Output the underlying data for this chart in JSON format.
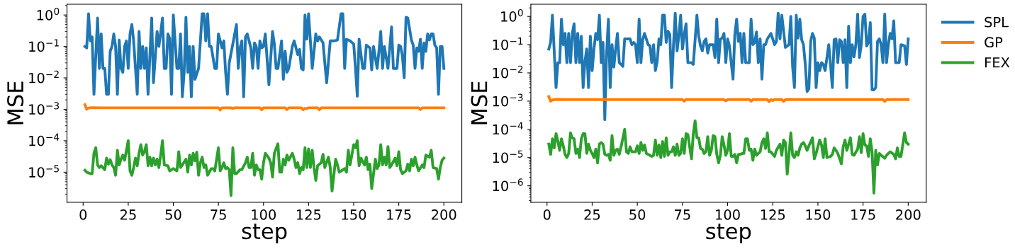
{
  "chart_data": [
    {
      "type": "line",
      "xlabel": "step",
      "ylabel": "MSE",
      "log": "y",
      "xlim": [
        -8.95,
        209.95
      ],
      "xticks": [
        0,
        25,
        50,
        75,
        100,
        125,
        150,
        175,
        200
      ],
      "ylim": [
        1.1e-06,
        2.2
      ],
      "yticks": [
        {
          "value": 1,
          "label": "10$^{0}$"
        },
        {
          "value": 0.1,
          "label": "10$^{−1}$"
        },
        {
          "value": 0.01,
          "label": "10$^{−2}$"
        },
        {
          "value": 0.001,
          "label": "10$^{−3}$"
        },
        {
          "value": 0.0001,
          "label": "10$^{−4}$"
        },
        {
          "value": 1e-05,
          "label": "10$^{−5}$"
        }
      ],
      "grid": false,
      "legend": false,
      "line_style": "solid",
      "marker": "none",
      "series": [
        {
          "color": "#1f77b4",
          "x": [
            1,
            2,
            3,
            4,
            5,
            6,
            8,
            9,
            10,
            11,
            12,
            13,
            14,
            15,
            16,
            17,
            18,
            19,
            20,
            21,
            22,
            23,
            24,
            25,
            26,
            27,
            28,
            30,
            31,
            32,
            33,
            34,
            35,
            36,
            38,
            39,
            41,
            42,
            44,
            45,
            46,
            47,
            48,
            49,
            50,
            52,
            53,
            54,
            55,
            56,
            57,
            58,
            59,
            60,
            61,
            62,
            64,
            66,
            67,
            68,
            69,
            70,
            71,
            73,
            74,
            75,
            76,
            77,
            78,
            79,
            80,
            81,
            83,
            85,
            86,
            87,
            88,
            89,
            90,
            91,
            93,
            94,
            95,
            96,
            97,
            98,
            99,
            100,
            101,
            103,
            105,
            106,
            107,
            108,
            110,
            111,
            112,
            113,
            114,
            116,
            117,
            119,
            120,
            121,
            122,
            123,
            124,
            125,
            127,
            129,
            130,
            131,
            133,
            135,
            137,
            139,
            141,
            143,
            144,
            145,
            146,
            148,
            150,
            151,
            152,
            153,
            155,
            156,
            157,
            159,
            160,
            161,
            163,
            164,
            165,
            166,
            167,
            169,
            171,
            172,
            174,
            175,
            176,
            177,
            178,
            179,
            180,
            182,
            183,
            184,
            185,
            186,
            187,
            188,
            189,
            190,
            191,
            192,
            193,
            194,
            195,
            196,
            197,
            198,
            199,
            200
          ],
          "values": [
            0.1,
            0.09,
            1.1,
            0.15,
            0.2,
            0.003,
            0.8,
            0.02,
            0.25,
            0.02,
            0.02,
            0.003,
            0.003,
            0.07,
            0.1,
            0.25,
            0.1,
            0.003,
            0.16,
            0.02,
            0.015,
            0.1,
            0.15,
            0.02,
            0.25,
            0.5,
            0.15,
            0.003,
            0.3,
            0.02,
            0.1,
            0.02,
            0.09,
            0.003,
            0.8,
            0.007,
            0.3,
            0.1,
            0.8,
            0.02,
            0.02,
            0.25,
            0.18,
            0.003,
            1.0,
            0.02,
            0.02,
            0.25,
            0.0025,
            0.015,
            0.85,
            0.015,
            0.1,
            0.0025,
            0.1,
            0.009,
            0.02,
            1.1,
            1.1,
            0.15,
            1.1,
            0.1,
            0.1,
            0.02,
            0.02,
            0.25,
            0.15,
            0.09,
            0.15,
            0.015,
            0.003,
            0.03,
            0.12,
            0.5,
            0.02,
            0.09,
            0.15,
            0.0025,
            0.2,
            0.25,
            0.09,
            0.02,
            0.13,
            0.1,
            0.02,
            0.15,
            0.09,
            0.1,
            0.25,
            0.006,
            0.3,
            0.12,
            0.02,
            0.02,
            0.15,
            0.009,
            0.07,
            0.015,
            0.02,
            0.1,
            0.15,
            0.055,
            0.08,
            0.02,
            0.018,
            1.0,
            0.17,
            1.1,
            0.02,
            0.25,
            0.15,
            0.2,
            0.13,
            0.007,
            0.15,
            0.15,
            0.16,
            1.1,
            1.1,
            0.02,
            0.17,
            0.15,
            0.12,
            0.02,
            0.0026,
            0.17,
            0.02,
            0.02,
            0.11,
            0.09,
            0.018,
            0.1,
            0.02,
            0.07,
            0.3,
            0.02,
            0.1,
            0.02,
            0.42,
            0.02,
            0.02,
            0.11,
            0.1,
            0.05,
            0.01,
            0.85,
            0.8,
            0.16,
            0.11,
            0.02,
            0.09,
            0.07,
            0.17,
            0.02,
            0.13,
            0.07,
            0.25,
            0.16,
            0.25,
            0.25,
            0.11,
            0.09,
            0.003,
            0.1,
            0.1,
            0.02
          ]
        },
        {
          "color": "#ff7f0e",
          "x": [
            1,
            2,
            3,
            5,
            10,
            75,
            76,
            77,
            82,
            83,
            84,
            98,
            99,
            100,
            112,
            113,
            114,
            121,
            122,
            123,
            124,
            125,
            130,
            131,
            132,
            186,
            187,
            188,
            200
          ],
          "values": [
            0.0014,
            0.001,
            0.0011,
            0.00113,
            0.00112,
            0.00112,
            0.00095,
            0.00112,
            0.00112,
            0.00106,
            0.00112,
            0.00112,
            0.00097,
            0.00112,
            0.00112,
            0.00098,
            0.00112,
            0.00112,
            0.00097,
            0.00108,
            0.00105,
            0.00112,
            0.00112,
            0.00097,
            0.00112,
            0.00112,
            0.00098,
            0.00112,
            0.00112
          ]
        },
        {
          "color": "#2ca02c",
          "x": [
            1,
            2,
            4,
            5,
            6,
            7,
            8,
            9,
            10,
            12,
            13,
            14,
            15,
            16,
            17,
            18,
            19,
            20,
            21,
            22,
            23,
            25,
            26,
            27,
            28,
            29,
            30,
            31,
            32,
            33,
            34,
            35,
            36,
            37,
            38,
            39,
            40,
            41,
            42,
            43,
            44,
            45,
            47,
            48,
            50,
            52,
            53,
            54,
            55,
            57,
            58,
            59,
            60,
            61,
            62,
            63,
            64,
            65,
            66,
            67,
            68,
            69,
            71,
            72,
            73,
            75,
            76,
            77,
            78,
            79,
            80,
            81,
            82,
            83,
            84,
            85,
            87,
            88,
            90,
            91,
            92,
            93,
            94,
            95,
            96,
            97,
            98,
            99,
            100,
            101,
            103,
            104,
            105,
            106,
            108,
            109,
            110,
            111,
            112,
            113,
            114,
            116,
            117,
            118,
            119,
            120,
            121,
            122,
            123,
            124,
            125,
            126,
            127,
            128,
            129,
            130,
            132,
            133,
            134,
            136,
            137,
            138,
            140,
            141,
            142,
            145,
            146,
            147,
            148,
            150,
            151,
            152,
            153,
            154,
            156,
            157,
            158,
            159,
            160,
            162,
            163,
            164,
            165,
            166,
            167,
            168,
            169,
            170,
            171,
            173,
            174,
            175,
            176,
            177,
            179,
            180,
            181,
            182,
            183,
            184,
            185,
            186,
            188,
            189,
            190,
            192,
            193,
            194,
            196,
            197,
            198,
            199,
            200
          ],
          "values": [
            1.15e-05,
            1e-05,
            9e-06,
            9e-06,
            4e-05,
            6e-05,
            1.7e-05,
            1.4e-05,
            1.6e-05,
            1.2e-05,
            2.8e-05,
            1.8e-05,
            2.5e-05,
            1.7e-05,
            1.4e-05,
            8e-06,
            5e-05,
            1.7e-05,
            2.6e-05,
            3.5e-05,
            2.4e-05,
            0.0001,
            1.1e-05,
            8e-06,
            1.4e-05,
            2.8e-05,
            1.6e-05,
            4e-05,
            7.5e-05,
            3.5e-05,
            4.5e-05,
            7.5e-05,
            1.6e-05,
            3e-05,
            1.6e-05,
            2.8e-05,
            1.7e-05,
            2.6e-05,
            1.4e-05,
            3.5e-05,
            0.0001,
            1.7e-05,
            1.6e-05,
            1.1e-05,
            1.3e-05,
            1.1e-05,
            4.5e-05,
            1.4e-05,
            1.7e-05,
            2.6e-05,
            1e-05,
            3.5e-05,
            1.7e-05,
            4e-05,
            2.3e-05,
            4.3e-05,
            8e-06,
            2e-05,
            3e-05,
            1.4e-05,
            1.7e-05,
            8e-06,
            1.3e-05,
            1.3e-05,
            1.1e-05,
            6e-05,
            1.1e-05,
            1.4e-05,
            2e-05,
            1.3e-05,
            1.4e-05,
            1.2e-05,
            1.8e-06,
            6e-05,
            9e-06,
            9e-06,
            1.2e-05,
            1.2e-05,
            2e-05,
            3e-05,
            1.4e-05,
            1.4e-05,
            4e-05,
            8e-06,
            1.7e-05,
            1.2e-05,
            1.2e-05,
            6e-06,
            2e-05,
            4e-05,
            2.8e-05,
            2e-05,
            7e-06,
            4e-05,
            8e-05,
            1e-05,
            1e-05,
            2.6e-05,
            1.7e-05,
            3.5e-05,
            2.4e-05,
            4e-05,
            2.6e-05,
            1.4e-05,
            2e-05,
            9e-06,
            1.4e-05,
            1.2e-05,
            6e-05,
            1.4e-05,
            5.5e-05,
            1.4e-05,
            5e-05,
            1.4e-05,
            5.5e-06,
            1.6e-05,
            2e-05,
            3.7e-05,
            1.4e-05,
            3e-05,
            1.4e-05,
            2.5e-06,
            2.6e-05,
            1.7e-05,
            1e-05,
            1.3e-05,
            1e-05,
            5e-05,
            1.7e-05,
            7.5e-05,
            6e-05,
            0.0001,
            1.6e-05,
            2.8e-05,
            1.7e-05,
            3e-05,
            1.2e-05,
            1.8e-05,
            3e-06,
            2.6e-05,
            1.3e-05,
            1.7e-05,
            7.5e-05,
            1.7e-05,
            3e-05,
            1.7e-05,
            6.5e-05,
            1.4e-05,
            1.7e-05,
            2.8e-05,
            1.6e-05,
            4.5e-05,
            1.2e-05,
            9e-06,
            1.1e-05,
            1.8e-05,
            1.1e-05,
            2.6e-05,
            1.6e-05,
            3e-05,
            1.7e-05,
            1.1e-05,
            1.7e-05,
            1.4e-05,
            3.5e-05,
            3e-05,
            5e-05,
            1.4e-05,
            1.3e-05,
            6e-06,
            1.4e-05,
            2.4e-05,
            2.8e-05
          ]
        }
      ]
    },
    {
      "type": "line",
      "xlabel": "step",
      "ylabel": "MSE",
      "log": "y",
      "xlim": [
        -8.95,
        209.95
      ],
      "xticks": [
        0,
        25,
        50,
        75,
        100,
        125,
        150,
        175,
        200
      ],
      "ylim": [
        2.6e-07,
        2.7
      ],
      "yticks": [
        {
          "value": 1,
          "label": "10$^{0}$"
        },
        {
          "value": 0.1,
          "label": "10$^{−1}$"
        },
        {
          "value": 0.01,
          "label": "10$^{−2}$"
        },
        {
          "value": 0.001,
          "label": "10$^{−3}$"
        },
        {
          "value": 0.0001,
          "label": "10$^{−4}$"
        },
        {
          "value": 1e-05,
          "label": "10$^{−5}$"
        },
        {
          "value": 1e-06,
          "label": "10$^{−6}$"
        }
      ],
      "grid": false,
      "legend": "right",
      "line_style": "solid",
      "marker": "none",
      "series": [
        {
          "name": "SPL",
          "color": "#1f77b4",
          "x": [
            1,
            2,
            3,
            5,
            6,
            7,
            8,
            9,
            10,
            11,
            12,
            13,
            14,
            15,
            16,
            17,
            18,
            19,
            20,
            21,
            22,
            23,
            24,
            25,
            26,
            27,
            28,
            29,
            30,
            31,
            32,
            33,
            34,
            35,
            36,
            37,
            38,
            39,
            40,
            41,
            42,
            43,
            45,
            46,
            47,
            48,
            49,
            50,
            51,
            52,
            53,
            54,
            56,
            57,
            58,
            59,
            60,
            61,
            62,
            63,
            64,
            65,
            66,
            67,
            68,
            69,
            70,
            71,
            72,
            73,
            74,
            75,
            76,
            77,
            78,
            80,
            81,
            83,
            84,
            85,
            86,
            87,
            88,
            89,
            90,
            92,
            93,
            94,
            95,
            96,
            97,
            98,
            99,
            100,
            101,
            102,
            103,
            104,
            105,
            106,
            107,
            108,
            109,
            110,
            112,
            113,
            114,
            115,
            116,
            117,
            118,
            119,
            120,
            121,
            122,
            124,
            126,
            127,
            128,
            129,
            130,
            131,
            132,
            134,
            135,
            136,
            137,
            138,
            139,
            140,
            141,
            142,
            143,
            144,
            145,
            146,
            147,
            148,
            149,
            150,
            151,
            152,
            153,
            154,
            156,
            157,
            158,
            159,
            160,
            161,
            162,
            163,
            164,
            165,
            166,
            167,
            168,
            169,
            170,
            171,
            172,
            173,
            174,
            175,
            176,
            177,
            178,
            179,
            180,
            181,
            182,
            183,
            184,
            185,
            186,
            187,
            188,
            189,
            190,
            191,
            192,
            193,
            195,
            196,
            198,
            199,
            200
          ],
          "values": [
            0.07,
            0.12,
            1.1,
            0.003,
            0.023,
            0.023,
            0.8,
            0.1,
            0.25,
            0.023,
            0.25,
            0.023,
            0.25,
            0.55,
            0.023,
            0.25,
            0.023,
            0.2,
            0.003,
            0.025,
            0.07,
            0.003,
            0.2,
            0.012,
            0.07,
            0.25,
            0.15,
            1.1,
            0.023,
            0.12,
            0.00022,
            0.05,
            0.8,
            0.003,
            0.1,
            0.016,
            0.07,
            0.25,
            0.023,
            0.02,
            0.017,
            0.16,
            0.16,
            0.16,
            0.1,
            0.12,
            0.1,
            0.023,
            0.8,
            0.023,
            0.15,
            0.25,
            0.1,
            0.09,
            0.023,
            0.1,
            0.012,
            0.025,
            0.16,
            0.1,
            1.1,
            1.1,
            0.12,
            0.3,
            0.23,
            0.003,
            0.09,
            1.3,
            0.06,
            0.2,
            1.1,
            0.07,
            0.23,
            0.55,
            0.023,
            0.023,
            0.02,
            1.1,
            0.2,
            0.09,
            0.06,
            0.13,
            0.16,
            0.05,
            0.1,
            0.1,
            0.035,
            0.8,
            0.023,
            0.16,
            0.17,
            0.25,
            0.023,
            0.16,
            0.09,
            0.023,
            0.006,
            0.23,
            0.8,
            0.13,
            0.25,
            0.023,
            0.25,
            0.023,
            0.023,
            0.8,
            0.1,
            0.12,
            0.28,
            0.023,
            0.16,
            0.006,
            0.1,
            0.1,
            0.16,
            0.25,
            0.1,
            0.13,
            1.3,
            0.16,
            1.1,
            0.3,
            0.08,
            0.1,
            1.0,
            0.016,
            0.003,
            1.1,
            0.17,
            0.8,
            0.15,
            0.1,
            0.02,
            0.0022,
            0.0027,
            0.13,
            0.25,
            0.17,
            0.003,
            0.023,
            0.012,
            0.023,
            0.02,
            0.012,
            0.1,
            0.019,
            0.003,
            0.15,
            0.16,
            0.023,
            0.15,
            0.13,
            0.023,
            0.15,
            0.003,
            0.45,
            0.023,
            0.1,
            0.037,
            0.1,
            1.2,
            0.035,
            0.1,
            1.0,
            1.2,
            0.09,
            0.12,
            0.6,
            0.0025,
            0.0025,
            0.003,
            0.13,
            0.16,
            0.1,
            0.023,
            1.2,
            0.023,
            0.1,
            0.25,
            0.16,
            0.7,
            0.023,
            0.023,
            0.1,
            0.09,
            0.02,
            0.16
          ]
        },
        {
          "name": "GP",
          "color": "#ff7f0e",
          "x": [
            1,
            2,
            3,
            5,
            10,
            75,
            76,
            77,
            98,
            99,
            100,
            112,
            113,
            114,
            122,
            123,
            124,
            125,
            126,
            130,
            131,
            132,
            186,
            187,
            188,
            200
          ],
          "values": [
            0.00145,
            0.001,
            0.0011,
            0.00115,
            0.00113,
            0.00113,
            0.001,
            0.00113,
            0.00113,
            0.00102,
            0.00113,
            0.00113,
            0.001,
            0.00113,
            0.00113,
            0.00095,
            0.00113,
            0.00105,
            0.00113,
            0.00113,
            0.00097,
            0.00113,
            0.00113,
            0.00098,
            0.00113,
            0.00113
          ]
        },
        {
          "name": "FEX",
          "color": "#2ca02c",
          "x": [
            1,
            2,
            3,
            4,
            5,
            6,
            7,
            8,
            9,
            10,
            11,
            12,
            13,
            14,
            15,
            16,
            17,
            18,
            19,
            20,
            21,
            22,
            23,
            24,
            25,
            26,
            27,
            28,
            29,
            30,
            31,
            32,
            33,
            34,
            35,
            36,
            37,
            38,
            39,
            40,
            41,
            43,
            44,
            45,
            46,
            47,
            49,
            50,
            51,
            52,
            53,
            54,
            55,
            56,
            58,
            59,
            60,
            61,
            62,
            63,
            64,
            65,
            66,
            67,
            68,
            69,
            70,
            71,
            72,
            73,
            74,
            75,
            76,
            77,
            78,
            79,
            80,
            81,
            82,
            83,
            84,
            85,
            86,
            87,
            88,
            89,
            90,
            91,
            92,
            93,
            94,
            95,
            96,
            97,
            98,
            99,
            100,
            101,
            102,
            103,
            104,
            105,
            106,
            107,
            108,
            109,
            110,
            111,
            112,
            113,
            114,
            115,
            116,
            117,
            118,
            119,
            120,
            121,
            122,
            123,
            124,
            126,
            127,
            129,
            130,
            131,
            132,
            133,
            134,
            135,
            136,
            137,
            138,
            139,
            140,
            141,
            142,
            143,
            144,
            145,
            147,
            148,
            149,
            151,
            152,
            153,
            154,
            155,
            157,
            158,
            159,
            160,
            161,
            163,
            164,
            165,
            166,
            168,
            169,
            170,
            172,
            173,
            174,
            175,
            176,
            177,
            178,
            179,
            180,
            181,
            182,
            183,
            184,
            185,
            187,
            188,
            189,
            190,
            192,
            193,
            194,
            195,
            196,
            198,
            199,
            200
          ],
          "values": [
            3e-05,
            1.3e-05,
            4.6e-05,
            2.2e-05,
            7e-05,
            3.8e-05,
            1.8e-05,
            4.6e-05,
            2.6e-05,
            1.3e-05,
            1e-05,
            1.4e-05,
            7.5e-05,
            5e-05,
            4.6e-05,
            1.4e-05,
            2e-05,
            1e-05,
            4.6e-05,
            7e-05,
            7e-05,
            1.4e-05,
            3e-05,
            1.8e-05,
            1.4e-05,
            1e-05,
            2e-05,
            6.5e-06,
            3e-05,
            3.4e-05,
            3e-05,
            1.3e-05,
            1.2e-05,
            1.3e-05,
            8e-06,
            6e-05,
            1.2e-05,
            1.8e-05,
            2e-05,
            1.3e-05,
            2.4e-05,
            0.0001,
            1.6e-05,
            1.4e-05,
            2.4e-05,
            1.6e-05,
            1.6e-05,
            2.6e-05,
            1.4e-05,
            3.4e-05,
            1.8e-05,
            2.8e-05,
            1.4e-05,
            1.3e-05,
            1.1e-05,
            1.2e-05,
            4.2e-05,
            1.2e-05,
            2.8e-05,
            1e-05,
            3.7e-05,
            1.1e-05,
            5e-05,
            1.2e-05,
            1.6e-05,
            1.6e-05,
            2.4e-05,
            1.2e-05,
            3e-05,
            1.2e-05,
            1.4e-05,
            4.6e-05,
            1.4e-05,
            7e-05,
            6.5e-05,
            2.4e-05,
            9e-06,
            7e-05,
            0.0002,
            5e-05,
            5e-05,
            2.1e-05,
            2e-05,
            1.4e-05,
            1.6e-05,
            5.5e-05,
            1.2e-05,
            1.8e-05,
            6e-05,
            5.5e-05,
            1.3e-05,
            6.5e-06,
            1.2e-05,
            5.5e-05,
            2.8e-05,
            1.2e-05,
            1.8e-05,
            7e-05,
            1.1e-05,
            1.1e-05,
            1.3e-05,
            6.5e-06,
            1.3e-05,
            1.3e-05,
            1.4e-05,
            1.4e-05,
            4.6e-05,
            4.6e-05,
            1.8e-05,
            2e-05,
            8e-06,
            2e-05,
            1.2e-05,
            1.4e-05,
            1.6e-05,
            3.4e-05,
            4.6e-05,
            2.1e-05,
            7.5e-05,
            1.6e-05,
            1.6e-05,
            1.1e-05,
            1.8e-05,
            3e-05,
            1.2e-05,
            4.2e-05,
            3.4e-05,
            2.6e-06,
            1.3e-05,
            7.5e-05,
            1.2e-05,
            1e-05,
            1.6e-05,
            1.2e-05,
            2.2e-05,
            3e-05,
            3.4e-05,
            2.6e-05,
            1.8e-05,
            2.6e-05,
            5e-05,
            9e-06,
            1.4e-05,
            4.2e-05,
            2.8e-05,
            1e-05,
            4.6e-05,
            1e-05,
            1.1e-05,
            1.3e-05,
            2.2e-05,
            1.8e-05,
            1.4e-05,
            6e-06,
            2.4e-05,
            4.2e-05,
            1.8e-05,
            5e-05,
            1.3e-05,
            1.2e-05,
            2e-05,
            5.5e-05,
            1.5e-05,
            7e-05,
            2.8e-05,
            2.6e-05,
            1.1e-05,
            4.6e-05,
            1.6e-05,
            5.5e-07,
            1.8e-05,
            5.5e-06,
            1.4e-05,
            1.2e-05,
            9.5e-06,
            1.2e-05,
            1.4e-05,
            1.6e-05,
            1.3e-05,
            9e-06,
            2.2e-05,
            1.1e-05,
            1.1e-05,
            7.5e-05,
            3.4e-05,
            3e-05
          ]
        }
      ]
    }
  ]
}
